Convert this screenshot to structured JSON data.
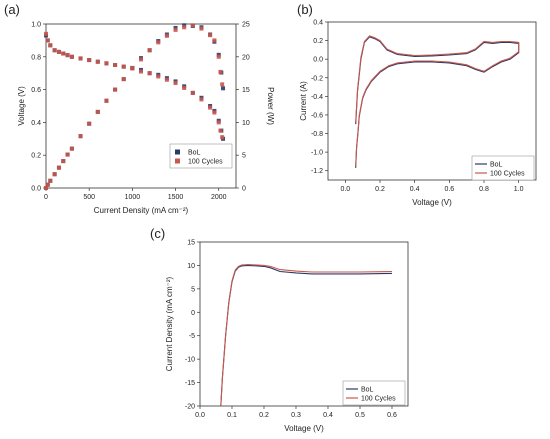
{
  "figure": {
    "panel_labels": [
      "(a)",
      "(b)",
      "(c)"
    ]
  },
  "chart_data": [
    {
      "panel": "(a)",
      "type": "scatter",
      "xlabel": "Current Density (mA cm⁻²)",
      "ylabel": "Voltage (V)",
      "y2label": "Power (W)",
      "xlim": [
        0,
        2200
      ],
      "ylim": [
        0,
        1.0
      ],
      "y2lim": [
        0,
        25
      ],
      "xticks": [
        0,
        500,
        1000,
        1500,
        2000
      ],
      "yticks": [
        0.0,
        0.2,
        0.4,
        0.6,
        0.8,
        1.0
      ],
      "y2ticks": [
        0,
        5,
        10,
        15,
        20,
        25
      ],
      "legend": "bottom-right",
      "colors": {
        "BoL": "#2b3a67",
        "100 Cycles": "#c9574c"
      },
      "series": [
        {
          "name": "BoL",
          "axis": "left",
          "x": [
            0,
            20,
            50,
            100,
            150,
            200,
            250,
            300,
            400,
            500,
            600,
            700,
            800,
            900,
            1000,
            1100,
            1200,
            1300,
            1400,
            1500,
            1600,
            1700,
            1800,
            1900,
            1950,
            2000,
            2030,
            2050
          ],
          "y": [
            0.93,
            0.9,
            0.87,
            0.84,
            0.83,
            0.82,
            0.81,
            0.8,
            0.79,
            0.78,
            0.77,
            0.76,
            0.75,
            0.74,
            0.73,
            0.72,
            0.7,
            0.69,
            0.67,
            0.65,
            0.62,
            0.58,
            0.55,
            0.5,
            0.47,
            0.41,
            0.35,
            0.3
          ]
        },
        {
          "name": "100 Cycles",
          "axis": "left",
          "x": [
            0,
            20,
            50,
            100,
            150,
            200,
            250,
            300,
            400,
            500,
            600,
            700,
            800,
            900,
            1000,
            1100,
            1200,
            1300,
            1400,
            1500,
            1600,
            1700,
            1800,
            1900,
            1950,
            2000,
            2020,
            2040
          ],
          "y": [
            0.94,
            0.9,
            0.87,
            0.84,
            0.83,
            0.82,
            0.81,
            0.8,
            0.79,
            0.78,
            0.77,
            0.76,
            0.75,
            0.74,
            0.73,
            0.71,
            0.7,
            0.68,
            0.66,
            0.64,
            0.61,
            0.58,
            0.54,
            0.49,
            0.46,
            0.4,
            0.35,
            0.31
          ]
        },
        {
          "name": "BoL",
          "axis": "right",
          "x": [
            0,
            20,
            50,
            100,
            150,
            200,
            250,
            300,
            400,
            500,
            600,
            700,
            800,
            900,
            1000,
            1100,
            1200,
            1300,
            1400,
            1500,
            1600,
            1700,
            1800,
            1900,
            1950,
            2000,
            2030,
            2050
          ],
          "y": [
            0,
            0.5,
            1.1,
            2.1,
            3.1,
            4.1,
            5.1,
            6,
            7.9,
            9.8,
            11.6,
            13.3,
            15,
            16.6,
            18.3,
            19.8,
            21,
            22.4,
            23.4,
            24.4,
            24.8,
            24.7,
            24.5,
            23.4,
            22.3,
            20.3,
            17.6,
            15.2
          ]
        },
        {
          "name": "100 Cycles",
          "axis": "right",
          "x": [
            0,
            20,
            50,
            100,
            150,
            200,
            250,
            300,
            400,
            500,
            600,
            700,
            800,
            900,
            1000,
            1100,
            1200,
            1300,
            1400,
            1500,
            1600,
            1700,
            1800,
            1900,
            1950,
            2000,
            2020,
            2040
          ],
          "y": [
            0,
            0.5,
            1.1,
            2.1,
            3.1,
            4.1,
            5.1,
            6,
            7.9,
            9.8,
            11.6,
            13.3,
            15,
            16.6,
            18.3,
            19.6,
            21,
            22.2,
            23.2,
            24.1,
            24.5,
            24.8,
            24.3,
            23.3,
            22.5,
            20,
            17.7,
            15.8
          ]
        }
      ]
    },
    {
      "panel": "(b)",
      "type": "line",
      "xlabel": "Voltage (V)",
      "ylabel": "Current (A)",
      "xlim": [
        -0.1,
        1.1
      ],
      "ylim": [
        -1.3,
        0.4
      ],
      "xticks": [
        0.0,
        0.2,
        0.4,
        0.6,
        0.8,
        1.0
      ],
      "yticks": [
        -1.2,
        -1.0,
        -0.8,
        -0.6,
        -0.4,
        -0.2,
        0.0,
        0.2,
        0.4
      ],
      "legend": "bottom-right",
      "colors": {
        "BoL": "#2b3a67",
        "100 Cycles": "#c9574c"
      },
      "series": [
        {
          "name": "BoL",
          "x": [
            0.06,
            0.07,
            0.09,
            0.11,
            0.14,
            0.17,
            0.2,
            0.24,
            0.3,
            0.4,
            0.5,
            0.6,
            0.7,
            0.75,
            0.8,
            0.85,
            0.9,
            0.95,
            1.0,
            1.0,
            0.95,
            0.9,
            0.85,
            0.8,
            0.75,
            0.7,
            0.6,
            0.5,
            0.4,
            0.3,
            0.25,
            0.2,
            0.15,
            0.12,
            0.1,
            0.09,
            0.08,
            0.075,
            0.07,
            0.065,
            0.06
          ],
          "y": [
            -0.7,
            -0.35,
            0.0,
            0.18,
            0.24,
            0.22,
            0.19,
            0.1,
            0.05,
            0.03,
            0.035,
            0.045,
            0.06,
            0.1,
            0.18,
            0.17,
            0.18,
            0.18,
            0.17,
            0.07,
            0.0,
            -0.03,
            -0.08,
            -0.14,
            -0.11,
            -0.07,
            -0.04,
            -0.03,
            -0.03,
            -0.05,
            -0.08,
            -0.14,
            -0.24,
            -0.33,
            -0.42,
            -0.52,
            -0.62,
            -0.75,
            -0.85,
            -0.95,
            -1.17
          ]
        },
        {
          "name": "100 Cycles",
          "x": [
            0.06,
            0.07,
            0.09,
            0.11,
            0.14,
            0.17,
            0.2,
            0.24,
            0.3,
            0.4,
            0.5,
            0.6,
            0.7,
            0.75,
            0.8,
            0.85,
            0.9,
            0.95,
            1.0,
            1.0,
            0.95,
            0.9,
            0.85,
            0.8,
            0.75,
            0.7,
            0.6,
            0.5,
            0.4,
            0.3,
            0.25,
            0.2,
            0.15,
            0.12,
            0.1,
            0.09,
            0.08,
            0.075,
            0.07,
            0.065,
            0.06
          ],
          "y": [
            -0.68,
            -0.33,
            0.02,
            0.19,
            0.25,
            0.23,
            0.2,
            0.11,
            0.06,
            0.04,
            0.045,
            0.055,
            0.07,
            0.11,
            0.19,
            0.18,
            0.19,
            0.19,
            0.18,
            0.08,
            0.01,
            -0.02,
            -0.07,
            -0.13,
            -0.1,
            -0.06,
            -0.03,
            -0.02,
            -0.02,
            -0.04,
            -0.07,
            -0.13,
            -0.23,
            -0.32,
            -0.41,
            -0.51,
            -0.61,
            -0.74,
            -0.84,
            -0.94,
            -1.15
          ]
        }
      ]
    },
    {
      "panel": "(c)",
      "type": "line",
      "xlabel": "Voltage (V)",
      "ylabel": "Current Density (mA cm⁻²)",
      "xlim": [
        0.0,
        0.65
      ],
      "ylim": [
        -20,
        15
      ],
      "xticks": [
        0.0,
        0.1,
        0.2,
        0.3,
        0.4,
        0.5,
        0.6
      ],
      "yticks": [
        -20,
        -15,
        -10,
        -5,
        0,
        5,
        10,
        15
      ],
      "legend": "bottom-right",
      "colors": {
        "BoL": "#2b3a67",
        "100 Cycles": "#c9574c"
      },
      "series": [
        {
          "name": "BoL",
          "x": [
            0.065,
            0.07,
            0.08,
            0.09,
            0.1,
            0.11,
            0.12,
            0.13,
            0.15,
            0.18,
            0.2,
            0.22,
            0.25,
            0.3,
            0.35,
            0.4,
            0.5,
            0.6
          ],
          "y": [
            -20,
            -14,
            -5,
            2,
            6.5,
            8.8,
            9.6,
            9.9,
            10.0,
            9.9,
            9.8,
            9.5,
            8.7,
            8.4,
            8.2,
            8.2,
            8.2,
            8.3
          ]
        },
        {
          "name": "100 Cycles",
          "x": [
            0.065,
            0.07,
            0.08,
            0.09,
            0.1,
            0.11,
            0.12,
            0.13,
            0.15,
            0.18,
            0.2,
            0.22,
            0.25,
            0.3,
            0.35,
            0.4,
            0.5,
            0.6
          ],
          "y": [
            -20,
            -14,
            -5,
            2.2,
            6.7,
            9.0,
            9.8,
            10.1,
            10.2,
            10.1,
            10.0,
            9.8,
            9.1,
            8.8,
            8.6,
            8.6,
            8.6,
            8.7
          ]
        }
      ]
    }
  ]
}
